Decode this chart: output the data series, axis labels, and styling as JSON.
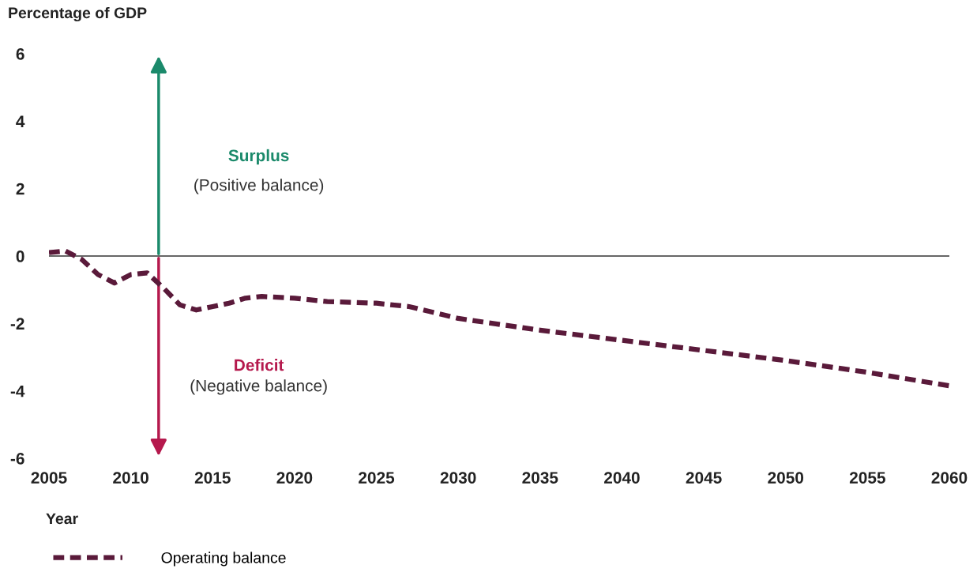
{
  "chart_data": {
    "type": "line",
    "ylabel": "Percentage of GDP",
    "xlabel": "Year",
    "x": [
      2005,
      2006,
      2007,
      2008,
      2009,
      2010,
      2011,
      2012,
      2013,
      2014,
      2015,
      2016,
      2017,
      2018,
      2020,
      2022,
      2025,
      2027,
      2030,
      2035,
      2040,
      2045,
      2050,
      2055,
      2060
    ],
    "series": [
      {
        "name": "Operating balance",
        "color": "#5a1a3a",
        "values": [
          0.1,
          0.15,
          -0.1,
          -0.55,
          -0.8,
          -0.55,
          -0.5,
          -0.95,
          -1.45,
          -1.6,
          -1.5,
          -1.4,
          -1.25,
          -1.2,
          -1.25,
          -1.35,
          -1.4,
          -1.5,
          -1.85,
          -2.2,
          -2.5,
          -2.8,
          -3.1,
          -3.45,
          -3.85
        ]
      }
    ],
    "xlim": [
      2005,
      2060
    ],
    "xticks": [
      2005,
      2010,
      2015,
      2020,
      2025,
      2030,
      2035,
      2040,
      2045,
      2050,
      2055,
      2060
    ],
    "ylim": [
      -6,
      6
    ],
    "yticks": [
      -6,
      -4,
      -2,
      0,
      2,
      4,
      6
    ],
    "ref_lines": [
      {
        "axis": "y",
        "value": 0,
        "color": "#333333",
        "line_style": "solid"
      }
    ],
    "annotations": [
      "Surplus",
      "(Positive balance)",
      "Deficit",
      "(Negative balance)"
    ],
    "line_style": "dashed",
    "marker": "none",
    "grid": false,
    "legend": "bottom left"
  }
}
